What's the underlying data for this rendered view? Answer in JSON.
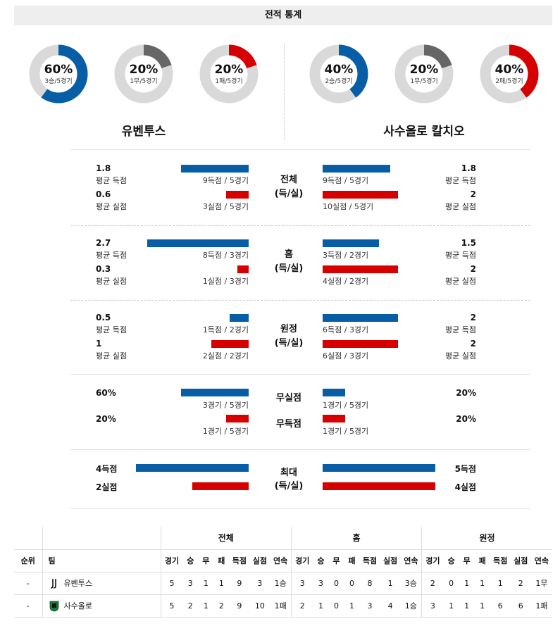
{
  "header": {
    "title": "전적 통계"
  },
  "teams": {
    "home": "유벤투스",
    "away": "사수올로 칼치오"
  },
  "colors": {
    "win": "#075ea6",
    "draw": "#666666",
    "loss": "#d60000",
    "track": "#d9d9d9"
  },
  "donuts": {
    "home": [
      {
        "pct": "60%",
        "sub": "3승/5경기",
        "value": 0.6,
        "kind": "win"
      },
      {
        "pct": "20%",
        "sub": "1무/5경기",
        "value": 0.2,
        "kind": "draw"
      },
      {
        "pct": "20%",
        "sub": "1패/5경기",
        "value": 0.2,
        "kind": "loss"
      }
    ],
    "away": [
      {
        "pct": "40%",
        "sub": "2승/5경기",
        "value": 0.4,
        "kind": "win"
      },
      {
        "pct": "20%",
        "sub": "1무/5경기",
        "value": 0.2,
        "kind": "draw"
      },
      {
        "pct": "40%",
        "sub": "2패/5경기",
        "value": 0.4,
        "kind": "loss"
      }
    ]
  },
  "sections": {
    "total": {
      "title": "전체",
      "sub": "(득/실)",
      "home": {
        "gf_val": "1.8",
        "gf_label": "평균 득점",
        "gf_count": "9득점 / 5경기",
        "ga_val": "0.6",
        "ga_label": "평균 실점",
        "ga_count": "3실점 / 5경기"
      },
      "away": {
        "gf_val": "1.8",
        "gf_label": "평균 득점",
        "gf_count": "9득점 / 5경기",
        "ga_val": "2",
        "ga_label": "평균 실점",
        "ga_count": "10실점 / 5경기"
      }
    },
    "home_games": {
      "title": "홈",
      "sub": "(득/실)",
      "home": {
        "gf_val": "2.7",
        "gf_label": "평균 득점",
        "gf_count": "8득점 / 3경기",
        "ga_val": "0.3",
        "ga_label": "평균 실점",
        "ga_count": "1실점 / 3경기"
      },
      "away": {
        "gf_val": "1.5",
        "gf_label": "평균 득점",
        "gf_count": "3득점 / 2경기",
        "ga_val": "2",
        "ga_label": "평균 실점",
        "ga_count": "4실점 / 2경기"
      }
    },
    "away_games": {
      "title": "원정",
      "sub": "(득/실)",
      "home": {
        "gf_val": "0.5",
        "gf_label": "평균 득점",
        "gf_count": "1득점 / 2경기",
        "ga_val": "1",
        "ga_label": "평균 실점",
        "ga_count": "2실점 / 2경기"
      },
      "away": {
        "gf_val": "2",
        "gf_label": "평균 득점",
        "gf_count": "6득점 / 3경기",
        "ga_val": "2",
        "ga_label": "평균 실점",
        "ga_count": "6실점 / 3경기"
      }
    },
    "clean": {
      "cs_title": "무실점",
      "fts_title": "무득점",
      "home": {
        "cs_val": "60%",
        "cs_count": "3경기 / 5경기",
        "fts_val": "20%",
        "fts_count": "1경기 / 5경기"
      },
      "away": {
        "cs_val": "20%",
        "cs_count": "1경기 / 5경기",
        "fts_val": "20%",
        "fts_count": "1경기 / 5경기"
      }
    },
    "max": {
      "title": "최대",
      "sub": "(득/실)",
      "home": {
        "gf": "4득점",
        "ga": "2실점"
      },
      "away": {
        "gf": "5득점",
        "ga": "4실점"
      }
    }
  },
  "table": {
    "groups": [
      "전체",
      "홈",
      "원정"
    ],
    "cols": {
      "rank": "순위",
      "team": "팀",
      "sub": [
        "경기",
        "승",
        "무",
        "패",
        "득점",
        "실점",
        "연속"
      ]
    },
    "rows": [
      {
        "rank": "-",
        "team": "유벤투스",
        "crest": "juventus-crest-icon",
        "total": [
          "5",
          "3",
          "1",
          "1",
          "9",
          "3",
          "1승"
        ],
        "home": [
          "3",
          "3",
          "0",
          "0",
          "8",
          "1",
          "3승"
        ],
        "away": [
          "2",
          "0",
          "1",
          "1",
          "1",
          "2",
          "1무"
        ]
      },
      {
        "rank": "-",
        "team": "사수올로",
        "crest": "sassuolo-crest-icon",
        "total": [
          "5",
          "2",
          "1",
          "2",
          "9",
          "10",
          "1패"
        ],
        "home": [
          "2",
          "1",
          "0",
          "1",
          "3",
          "4",
          "1승"
        ],
        "away": [
          "3",
          "1",
          "1",
          "1",
          "6",
          "6",
          "1패"
        ]
      }
    ]
  }
}
